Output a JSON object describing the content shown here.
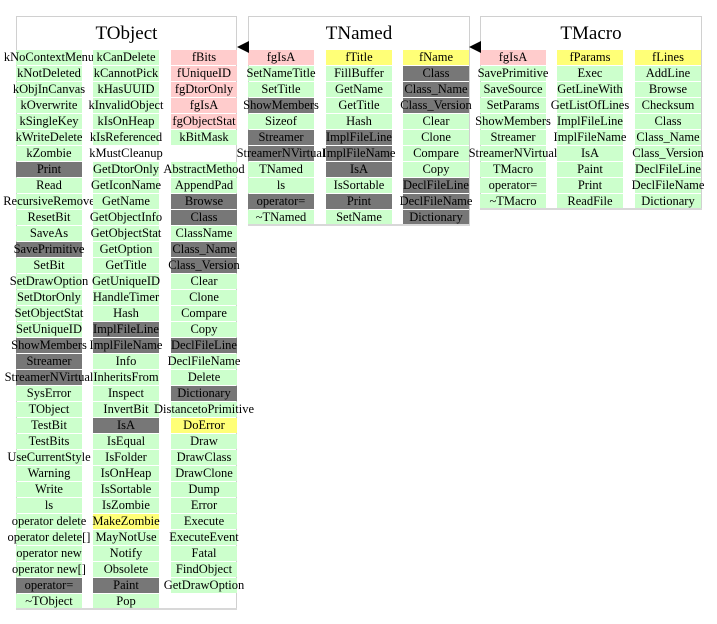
{
  "colors": {
    "member": "#ccffcc",
    "private": "#ffcccc",
    "protected": "#ffff77",
    "inherited_or_virtual": "#777777"
  },
  "classes": [
    {
      "name": "TObject",
      "columns": [
        [
          [
            "kNoContextMenu",
            "g"
          ],
          [
            "kNotDeleted",
            "g"
          ],
          [
            "kObjInCanvas",
            "g"
          ],
          [
            "kOverwrite",
            "g"
          ],
          [
            "kSingleKey",
            "g"
          ],
          [
            "kWriteDelete",
            "g"
          ],
          [
            "kZombie",
            "g"
          ],
          [
            "Print",
            "d"
          ],
          [
            "Read",
            "g"
          ],
          [
            "RecursiveRemove",
            "g"
          ],
          [
            "ResetBit",
            "g"
          ],
          [
            "SaveAs",
            "g"
          ],
          [
            "SavePrimitive",
            "d"
          ],
          [
            "SetBit",
            "g"
          ],
          [
            "SetDrawOption",
            "g"
          ],
          [
            "SetDtorOnly",
            "g"
          ],
          [
            "SetObjectStat",
            "g"
          ],
          [
            "SetUniqueID",
            "g"
          ],
          [
            "ShowMembers",
            "d"
          ],
          [
            "Streamer",
            "d"
          ],
          [
            "StreamerNVirtual",
            "d"
          ],
          [
            "SysError",
            "g"
          ],
          [
            "TObject",
            "g"
          ],
          [
            "TestBit",
            "g"
          ],
          [
            "TestBits",
            "g"
          ],
          [
            "UseCurrentStyle",
            "g"
          ],
          [
            "Warning",
            "g"
          ],
          [
            "Write",
            "g"
          ],
          [
            "ls",
            "g"
          ],
          [
            "operator delete",
            "g"
          ],
          [
            "operator delete[]",
            "g"
          ],
          [
            "operator new",
            "g"
          ],
          [
            "operator new[]",
            "g"
          ],
          [
            "operator=",
            "d"
          ],
          [
            "~TObject",
            "g"
          ]
        ],
        [
          [
            "kCanDelete",
            "g"
          ],
          [
            "kCannotPick",
            "g"
          ],
          [
            "kHasUUID",
            "g"
          ],
          [
            "kInvalidObject",
            "g"
          ],
          [
            "kIsOnHeap",
            "g"
          ],
          [
            "kIsReferenced",
            "g"
          ],
          [
            "kMustCleanup",
            "n"
          ],
          [
            "GetDtorOnly",
            "g"
          ],
          [
            "GetIconName",
            "g"
          ],
          [
            "GetName",
            "g"
          ],
          [
            "GetObjectInfo",
            "g"
          ],
          [
            "GetObjectStat",
            "g"
          ],
          [
            "GetOption",
            "g"
          ],
          [
            "GetTitle",
            "g"
          ],
          [
            "GetUniqueID",
            "g"
          ],
          [
            "HandleTimer",
            "g"
          ],
          [
            "Hash",
            "g"
          ],
          [
            "ImplFileLine",
            "d"
          ],
          [
            "ImplFileName",
            "d"
          ],
          [
            "Info",
            "g"
          ],
          [
            "InheritsFrom",
            "g"
          ],
          [
            "Inspect",
            "g"
          ],
          [
            "InvertBit",
            "g"
          ],
          [
            "IsA",
            "d"
          ],
          [
            "IsEqual",
            "g"
          ],
          [
            "IsFolder",
            "g"
          ],
          [
            "IsOnHeap",
            "g"
          ],
          [
            "IsSortable",
            "g"
          ],
          [
            "IsZombie",
            "g"
          ],
          [
            "MakeZombie",
            "y"
          ],
          [
            "MayNotUse",
            "g"
          ],
          [
            "Notify",
            "g"
          ],
          [
            "Obsolete",
            "g"
          ],
          [
            "Paint",
            "d"
          ],
          [
            "Pop",
            "g"
          ]
        ],
        [
          [
            "fBits",
            "p"
          ],
          [
            "fUniqueID",
            "p"
          ],
          [
            "fgDtorOnly",
            "p"
          ],
          [
            "fgIsA",
            "p"
          ],
          [
            "fgObjectStat",
            "p"
          ],
          [
            "kBitMask",
            "g"
          ],
          [
            "",
            "n"
          ],
          [
            "AbstractMethod",
            "g"
          ],
          [
            "AppendPad",
            "g"
          ],
          [
            "Browse",
            "d"
          ],
          [
            "Class",
            "d"
          ],
          [
            "ClassName",
            "g"
          ],
          [
            "Class_Name",
            "d"
          ],
          [
            "Class_Version",
            "d"
          ],
          [
            "Clear",
            "g"
          ],
          [
            "Clone",
            "g"
          ],
          [
            "Compare",
            "g"
          ],
          [
            "Copy",
            "g"
          ],
          [
            "DeclFileLine",
            "d"
          ],
          [
            "DeclFileName",
            "g"
          ],
          [
            "Delete",
            "g"
          ],
          [
            "Dictionary",
            "d"
          ],
          [
            "DistancetoPrimitive",
            "g"
          ],
          [
            "DoError",
            "y"
          ],
          [
            "Draw",
            "g"
          ],
          [
            "DrawClass",
            "g"
          ],
          [
            "DrawClone",
            "g"
          ],
          [
            "Dump",
            "g"
          ],
          [
            "Error",
            "g"
          ],
          [
            "Execute",
            "g"
          ],
          [
            "ExecuteEvent",
            "g"
          ],
          [
            "Fatal",
            "g"
          ],
          [
            "FindObject",
            "g"
          ],
          [
            "GetDrawOption",
            "g"
          ]
        ]
      ]
    },
    {
      "name": "TNamed",
      "columns": [
        [
          [
            "fgIsA",
            "p"
          ],
          [
            "SetNameTitle",
            "g"
          ],
          [
            "SetTitle",
            "g"
          ],
          [
            "ShowMembers",
            "d"
          ],
          [
            "Sizeof",
            "g"
          ],
          [
            "Streamer",
            "d"
          ],
          [
            "StreamerNVirtual",
            "d"
          ],
          [
            "TNamed",
            "g"
          ],
          [
            "ls",
            "g"
          ],
          [
            "operator=",
            "d"
          ],
          [
            "~TNamed",
            "g"
          ]
        ],
        [
          [
            "fTitle",
            "y"
          ],
          [
            "FillBuffer",
            "g"
          ],
          [
            "GetName",
            "g"
          ],
          [
            "GetTitle",
            "g"
          ],
          [
            "Hash",
            "g"
          ],
          [
            "ImplFileLine",
            "d"
          ],
          [
            "ImplFileName",
            "d"
          ],
          [
            "IsA",
            "d"
          ],
          [
            "IsSortable",
            "g"
          ],
          [
            "Print",
            "d"
          ],
          [
            "SetName",
            "g"
          ]
        ],
        [
          [
            "fName",
            "y"
          ],
          [
            "Class",
            "d"
          ],
          [
            "Class_Name",
            "d"
          ],
          [
            "Class_Version",
            "d"
          ],
          [
            "Clear",
            "g"
          ],
          [
            "Clone",
            "g"
          ],
          [
            "Compare",
            "g"
          ],
          [
            "Copy",
            "g"
          ],
          [
            "DeclFileLine",
            "d"
          ],
          [
            "DeclFileName",
            "d"
          ],
          [
            "Dictionary",
            "d"
          ]
        ]
      ]
    },
    {
      "name": "TMacro",
      "columns": [
        [
          [
            "fgIsA",
            "p"
          ],
          [
            "SavePrimitive",
            "g"
          ],
          [
            "SaveSource",
            "g"
          ],
          [
            "SetParams",
            "g"
          ],
          [
            "ShowMembers",
            "g"
          ],
          [
            "Streamer",
            "g"
          ],
          [
            "StreamerNVirtual",
            "g"
          ],
          [
            "TMacro",
            "g"
          ],
          [
            "operator=",
            "g"
          ],
          [
            "~TMacro",
            "g"
          ]
        ],
        [
          [
            "fParams",
            "y"
          ],
          [
            "Exec",
            "g"
          ],
          [
            "GetLineWith",
            "g"
          ],
          [
            "GetListOfLines",
            "g"
          ],
          [
            "ImplFileLine",
            "g"
          ],
          [
            "ImplFileName",
            "g"
          ],
          [
            "IsA",
            "g"
          ],
          [
            "Paint",
            "g"
          ],
          [
            "Print",
            "g"
          ],
          [
            "ReadFile",
            "g"
          ]
        ],
        [
          [
            "fLines",
            "y"
          ],
          [
            "AddLine",
            "g"
          ],
          [
            "Browse",
            "g"
          ],
          [
            "Checksum",
            "g"
          ],
          [
            "Class",
            "g"
          ],
          [
            "Class_Name",
            "g"
          ],
          [
            "Class_Version",
            "g"
          ],
          [
            "DeclFileLine",
            "g"
          ],
          [
            "DeclFileName",
            "g"
          ],
          [
            "Dictionary",
            "g"
          ]
        ]
      ]
    }
  ]
}
